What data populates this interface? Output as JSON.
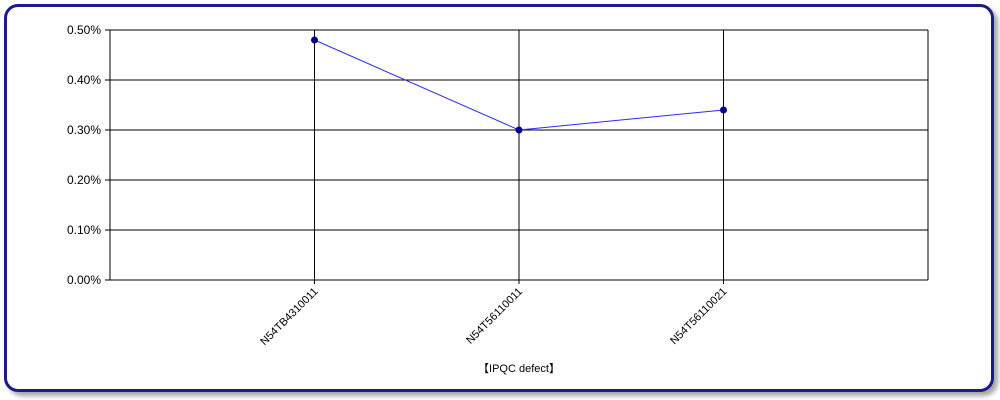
{
  "colors": {
    "frame_border": "#1b1b8a",
    "series_line": "#2b2bff",
    "series_marker": "#00008b",
    "grid": "#000000"
  },
  "chart_data": {
    "type": "line",
    "title": "",
    "xlabel": "【IPQC defect】",
    "ylabel": "",
    "categories": [
      "N54TB4310011",
      "N54T56110011",
      "N54T56110021"
    ],
    "series": [
      {
        "values": [
          0.48,
          0.3,
          0.34
        ]
      }
    ],
    "ylim": [
      0,
      0.5
    ],
    "yticks": [
      0,
      0.1,
      0.2,
      0.3,
      0.4,
      0.5
    ],
    "ytick_labels": [
      "0.00%",
      "0.10%",
      "0.20%",
      "0.30%",
      "0.40%",
      "0.50%"
    ],
    "grid": true,
    "legend": "none"
  }
}
